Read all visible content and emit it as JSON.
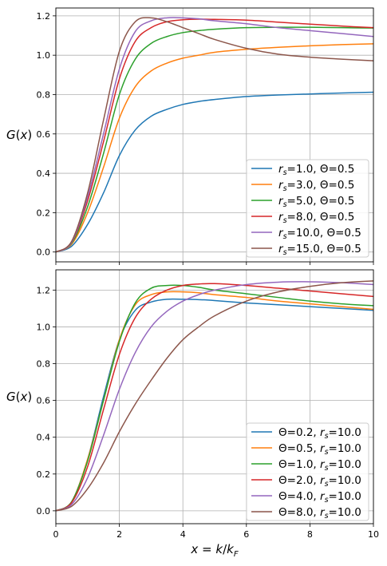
{
  "figure": {
    "xlabel": "x = k/k_F"
  },
  "colors": [
    "#1f77b4",
    "#ff7f0e",
    "#2ca02c",
    "#d62728",
    "#9467bd",
    "#8c564b"
  ],
  "chart_data": [
    {
      "type": "line",
      "ylabel": "G(x)",
      "xlim": [
        0,
        10
      ],
      "ylim": [
        -0.05,
        1.24
      ],
      "xticks": [
        0,
        2,
        4,
        6,
        8,
        10
      ],
      "yticks": [
        0.0,
        0.2,
        0.4,
        0.6,
        0.8,
        1.0,
        1.2
      ],
      "grid": true,
      "legend_position": "lower-right",
      "x": [
        0,
        0.5,
        1,
        1.5,
        2,
        2.5,
        3,
        3.5,
        4,
        4.5,
        5,
        6,
        7,
        8,
        9,
        10
      ],
      "series": [
        {
          "name": "rs=1.0, Θ=0.5",
          "legend": [
            "r",
            "s",
            "=1.0, Θ=0.5"
          ],
          "values": [
            0.0,
            0.03,
            0.14,
            0.3,
            0.49,
            0.62,
            0.69,
            0.725,
            0.75,
            0.765,
            0.775,
            0.79,
            0.798,
            0.803,
            0.808,
            0.812
          ]
        },
        {
          "name": "rs=3.0, Θ=0.5",
          "legend": [
            "r",
            "s",
            "=3.0, Θ=0.5"
          ],
          "values": [
            0.0,
            0.04,
            0.2,
            0.43,
            0.68,
            0.84,
            0.92,
            0.96,
            0.985,
            1.0,
            1.015,
            1.03,
            1.04,
            1.048,
            1.054,
            1.058
          ]
        },
        {
          "name": "rs=5.0, Θ=0.5",
          "legend": [
            "r",
            "s",
            "=5.0, Θ=0.5"
          ],
          "values": [
            0.0,
            0.045,
            0.23,
            0.5,
            0.8,
            0.98,
            1.06,
            1.095,
            1.115,
            1.125,
            1.132,
            1.14,
            1.142,
            1.142,
            1.14,
            1.138
          ]
        },
        {
          "name": "rs=8.0, Θ=0.5",
          "legend": [
            "r",
            "s",
            "=8.0, Θ=0.5"
          ],
          "values": [
            0.0,
            0.05,
            0.26,
            0.56,
            0.88,
            1.07,
            1.14,
            1.17,
            1.18,
            1.183,
            1.182,
            1.178,
            1.168,
            1.158,
            1.148,
            1.14
          ]
        },
        {
          "name": "rs=10.0, Θ=0.5",
          "legend": [
            "r",
            "s",
            "=10.0, Θ=0.5"
          ],
          "values": [
            0.0,
            0.05,
            0.28,
            0.6,
            0.93,
            1.12,
            1.175,
            1.19,
            1.19,
            1.185,
            1.175,
            1.16,
            1.14,
            1.125,
            1.11,
            1.095
          ]
        },
        {
          "name": "rs=15.0, Θ=0.5",
          "legend": [
            "r",
            "s",
            "=15.0, Θ=0.5"
          ],
          "values": [
            0.0,
            0.055,
            0.3,
            0.67,
            1.02,
            1.17,
            1.19,
            1.17,
            1.14,
            1.11,
            1.08,
            1.035,
            1.005,
            0.99,
            0.98,
            0.972
          ]
        }
      ]
    },
    {
      "type": "line",
      "ylabel": "G(x)",
      "xlabel": "x = k/k_F",
      "xlim": [
        0,
        10
      ],
      "ylim": [
        -0.07,
        1.31
      ],
      "xticks": [
        0,
        2,
        4,
        6,
        8,
        10
      ],
      "yticks": [
        0.0,
        0.2,
        0.4,
        0.6,
        0.8,
        1.0,
        1.2
      ],
      "grid": true,
      "legend_position": "lower-right",
      "x": [
        0,
        0.5,
        1,
        1.5,
        2,
        2.5,
        3,
        3.5,
        4,
        4.5,
        5,
        6,
        7,
        8,
        9,
        10
      ],
      "series": [
        {
          "name": "Θ=0.2, rs=10.0",
          "legend": [
            "Θ=0.2, ",
            "r",
            "s",
            "=10.0"
          ],
          "values": [
            0.0,
            0.05,
            0.28,
            0.62,
            0.93,
            1.09,
            1.135,
            1.15,
            1.15,
            1.148,
            1.143,
            1.13,
            1.12,
            1.11,
            1.1,
            1.09
          ]
        },
        {
          "name": "Θ=0.5, rs=10.0",
          "legend": [
            "Θ=0.5, ",
            "r",
            "s",
            "=10.0"
          ],
          "values": [
            0.0,
            0.05,
            0.28,
            0.6,
            0.93,
            1.12,
            1.175,
            1.19,
            1.19,
            1.185,
            1.175,
            1.16,
            1.14,
            1.125,
            1.11,
            1.095
          ]
        },
        {
          "name": "Θ=1.0, rs=10.0",
          "legend": [
            "Θ=1.0, ",
            "r",
            "s",
            "=10.0"
          ],
          "values": [
            0.0,
            0.05,
            0.27,
            0.6,
            0.92,
            1.13,
            1.21,
            1.225,
            1.225,
            1.215,
            1.2,
            1.18,
            1.16,
            1.14,
            1.125,
            1.115
          ]
        },
        {
          "name": "Θ=2.0, rs=10.0",
          "legend": [
            "Θ=2.0, ",
            "r",
            "s",
            "=10.0"
          ],
          "values": [
            0.0,
            0.045,
            0.24,
            0.55,
            0.85,
            1.05,
            1.15,
            1.2,
            1.225,
            1.233,
            1.235,
            1.225,
            1.21,
            1.195,
            1.18,
            1.165
          ]
        },
        {
          "name": "Θ=4.0, rs=10.0",
          "legend": [
            "Θ=4.0, ",
            "r",
            "s",
            "=10.0"
          ],
          "values": [
            0.0,
            0.035,
            0.18,
            0.41,
            0.66,
            0.86,
            1.0,
            1.085,
            1.14,
            1.175,
            1.2,
            1.23,
            1.243,
            1.245,
            1.24,
            1.23
          ]
        },
        {
          "name": "Θ=8.0, rs=10.0",
          "legend": [
            "Θ=8.0, ",
            "r",
            "s",
            "=10.0"
          ],
          "values": [
            0.0,
            0.025,
            0.12,
            0.26,
            0.43,
            0.58,
            0.71,
            0.83,
            0.93,
            1.0,
            1.06,
            1.14,
            1.19,
            1.22,
            1.24,
            1.25
          ]
        }
      ]
    }
  ]
}
